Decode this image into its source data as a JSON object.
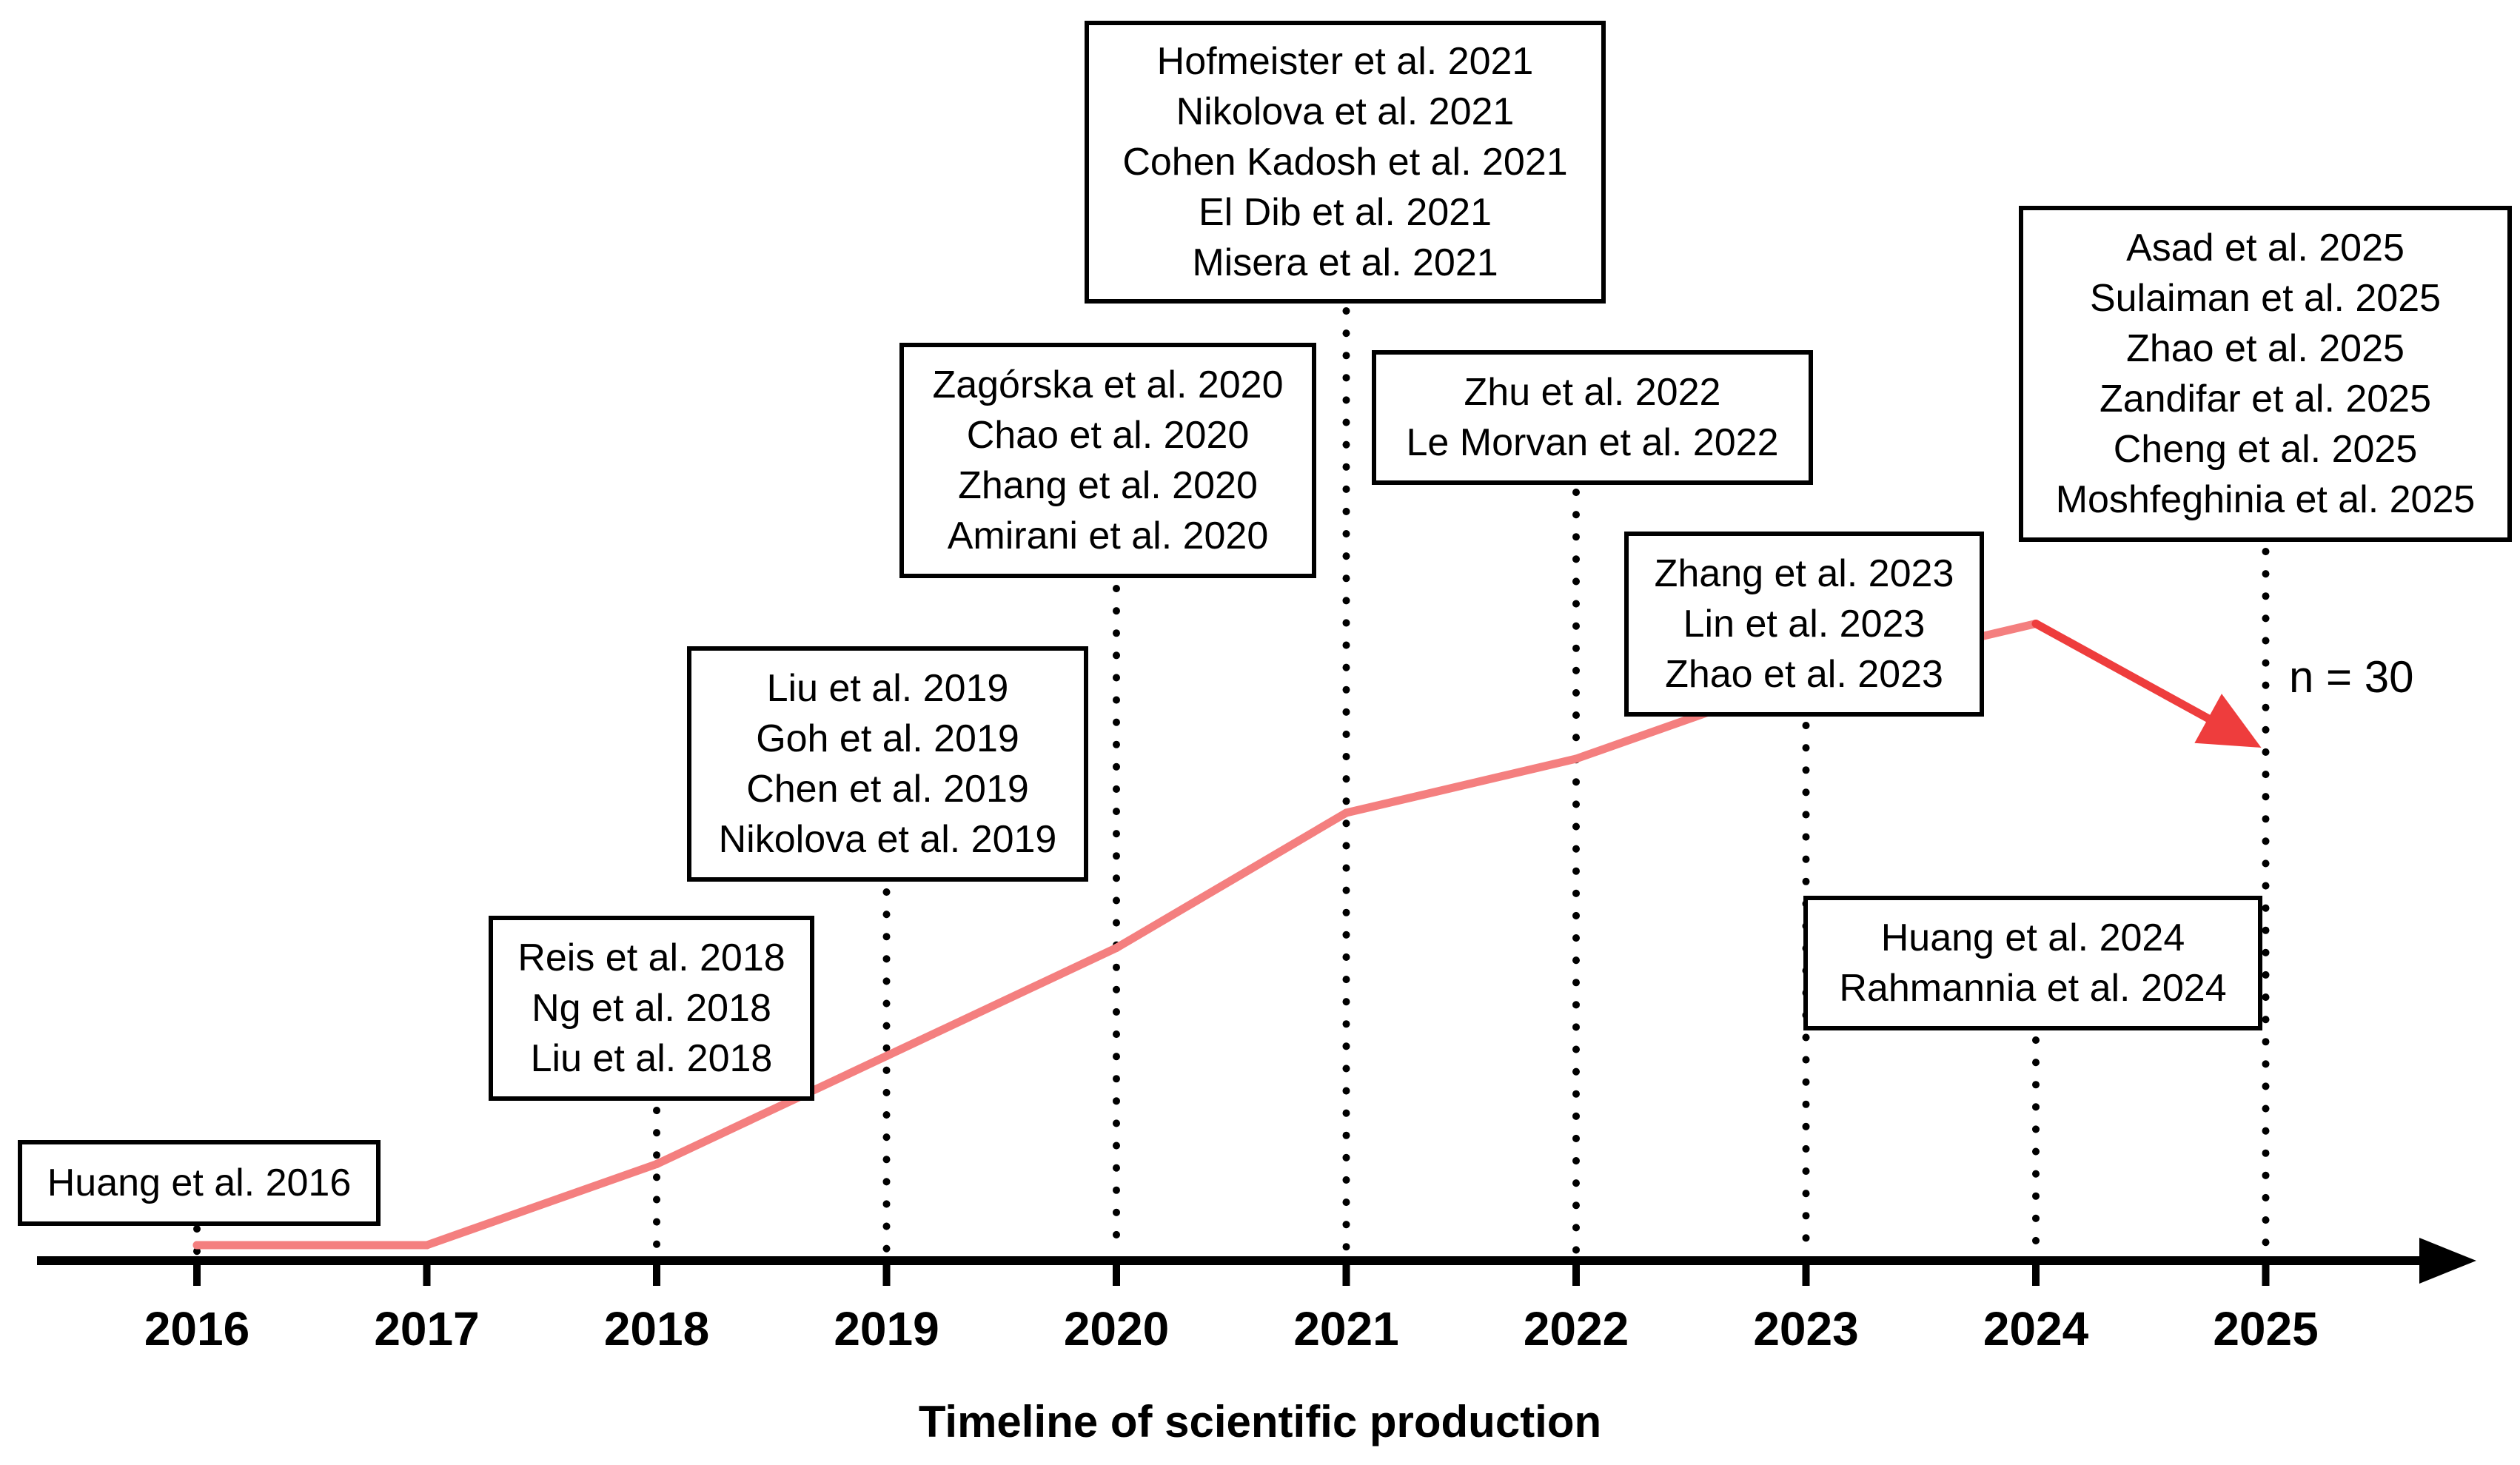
{
  "chart_data": {
    "type": "timeline",
    "xlabel": "Timeline of scientific production",
    "years": [
      "2016",
      "2017",
      "2018",
      "2019",
      "2020",
      "2021",
      "2022",
      "2023",
      "2024",
      "2025"
    ],
    "cumulative_trend": [
      {
        "year": 2016,
        "value": 1
      },
      {
        "year": 2017,
        "value": 1
      },
      {
        "year": 2018,
        "value": 4
      },
      {
        "year": 2019,
        "value": 8
      },
      {
        "year": 2020,
        "value": 12
      },
      {
        "year": 2021,
        "value": 17
      },
      {
        "year": 2022,
        "value": 19
      },
      {
        "year": 2023,
        "value": 22
      },
      {
        "year": 2024,
        "value": 24
      },
      {
        "year": 2025,
        "value": 30
      }
    ],
    "total_label": "n = 30",
    "line_color": "#f47f7f",
    "arrow_color": "#ee3d3d",
    "groups": [
      {
        "year": 2016,
        "entries": [
          "Huang et al. 2016"
        ]
      },
      {
        "year": 2018,
        "entries": [
          "Reis et al. 2018",
          "Ng et al. 2018",
          "Liu et al. 2018"
        ]
      },
      {
        "year": 2019,
        "entries": [
          "Liu et al. 2019",
          "Goh et al. 2019",
          "Chen et al. 2019",
          "Nikolova et al. 2019"
        ]
      },
      {
        "year": 2020,
        "entries": [
          "Zagórska et al. 2020",
          "Chao et al. 2020",
          "Zhang et al. 2020",
          "Amirani et al. 2020"
        ]
      },
      {
        "year": 2021,
        "entries": [
          "Hofmeister et al.  2021",
          "Nikolova et al. 2021",
          "Cohen Kadosh et al. 2021",
          "El Dib et al. 2021",
          "Misera et al. 2021"
        ]
      },
      {
        "year": 2022,
        "entries": [
          "Zhu et al. 2022",
          "Le Morvan et al. 2022"
        ]
      },
      {
        "year": 2023,
        "entries": [
          "Zhang et al. 2023",
          "Lin et al. 2023",
          "Zhao et al. 2023"
        ]
      },
      {
        "year": 2024,
        "entries": [
          "Huang et al. 2024",
          "Rahmannia et al. 2024"
        ]
      },
      {
        "year": 2025,
        "entries": [
          "Asad et al. 2025",
          "Sulaiman et al. 2025",
          "Zhao et al. 2025",
          "Zandifar et al. 2025",
          "Cheng et al. 2025",
          "Moshfeghinia et al. 2025"
        ]
      }
    ]
  }
}
